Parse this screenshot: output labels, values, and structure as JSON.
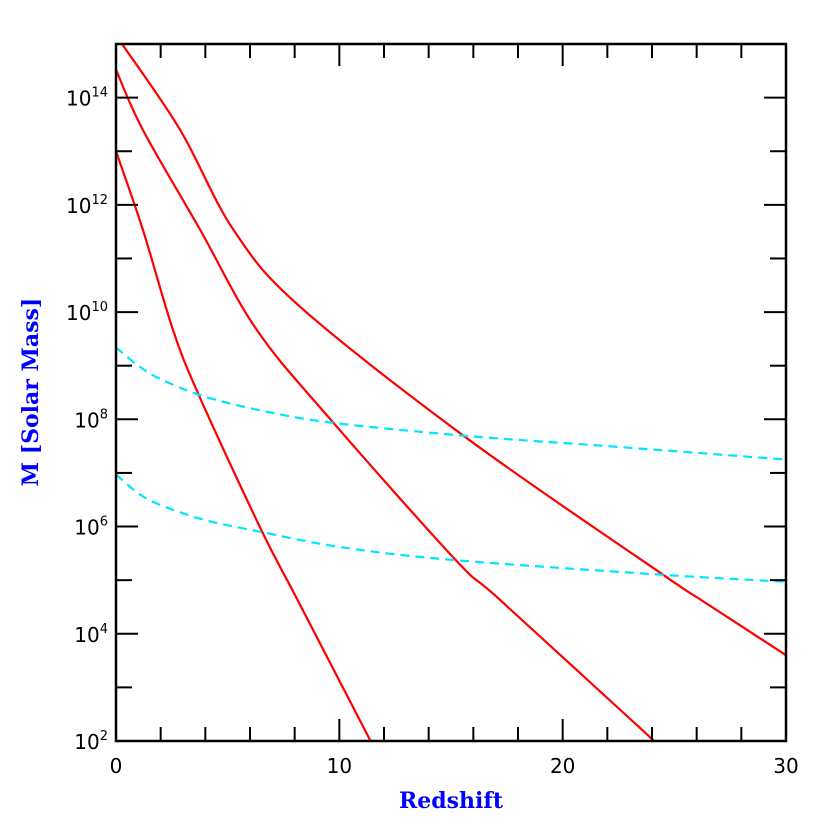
{
  "chart_data": {
    "type": "line",
    "xlabel": "Redshift",
    "ylabel": "M [Solar Mass]",
    "xlim": [
      0,
      30
    ],
    "ylim_log10": [
      2,
      15
    ],
    "yscale": "log",
    "grid": false,
    "x_ticks": [
      0,
      10,
      20,
      30
    ],
    "x_minor_step": 2,
    "y_tick_labels": [
      {
        "base": "10",
        "exp": "2",
        "log": 2
      },
      {
        "base": "10",
        "exp": "4",
        "log": 4
      },
      {
        "base": "10",
        "exp": "6",
        "log": 6
      },
      {
        "base": "10",
        "exp": "8",
        "log": 8
      },
      {
        "base": "10",
        "exp": "10",
        "log": 10
      },
      {
        "base": "10",
        "exp": "12",
        "log": 12
      },
      {
        "base": "10",
        "exp": "14",
        "log": 14
      }
    ],
    "colors": {
      "solid": "#ff0000",
      "dashed": "#00e5ff",
      "axis_title": "#0000ff"
    },
    "series": [
      {
        "style": "solid",
        "color": "#ff0000",
        "x": [
          0,
          1.2,
          2.55,
          3.7,
          6.5,
          8.13,
          11.4
        ],
        "log10_y": [
          13.0,
          11.54,
          9.67,
          8.46,
          5.94,
          4.63,
          2.0
        ]
      },
      {
        "style": "solid",
        "color": "#ff0000",
        "x": [
          0,
          1.2,
          3.76,
          6.3,
          9.6,
          15.2,
          17.2,
          24.1
        ],
        "log10_y": [
          14.52,
          13.4,
          11.54,
          9.67,
          8.0,
          5.38,
          4.63,
          2.0
        ]
      },
      {
        "style": "solid",
        "color": "#ff0000",
        "x": [
          0.27,
          2.87,
          5.25,
          8.24,
          15.8,
          24.5,
          26.2,
          30
        ],
        "log10_y": [
          15.0,
          13.4,
          11.54,
          10.1,
          7.62,
          5.1,
          4.63,
          3.6
        ]
      },
      {
        "style": "dashed",
        "color": "#00e5ff",
        "x": [
          0,
          1,
          2,
          4,
          7,
          10,
          16,
          22,
          30
        ],
        "log10_y": [
          9.34,
          9.0,
          8.75,
          8.42,
          8.12,
          7.92,
          7.68,
          7.5,
          7.25
        ]
      },
      {
        "style": "dashed",
        "color": "#00e5ff",
        "x": [
          0,
          1,
          2,
          4,
          6.5,
          10,
          15,
          24.5,
          30
        ],
        "log10_y": [
          6.97,
          6.62,
          6.4,
          6.12,
          5.9,
          5.62,
          5.38,
          5.1,
          4.97
        ]
      }
    ]
  }
}
